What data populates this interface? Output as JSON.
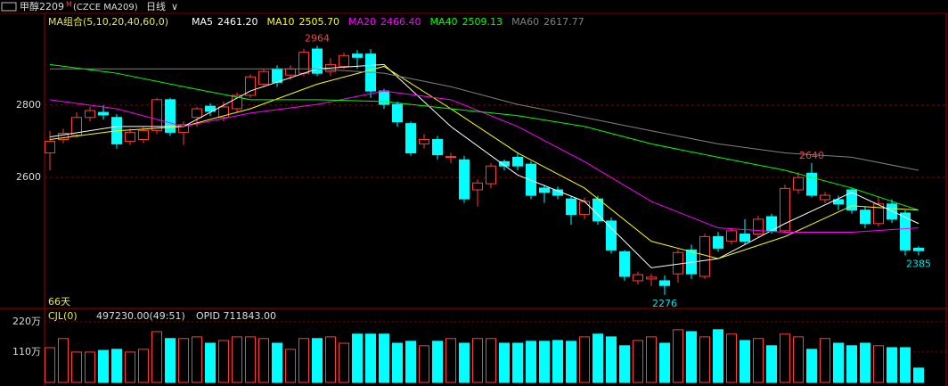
{
  "header": {
    "name": "甲醇2209",
    "mark": "M",
    "code": "(CZCE MA209)",
    "period": "日线"
  },
  "chart_data": [
    {
      "type": "candlestick",
      "title": "MA组合(5,10,20,40,60,0)",
      "days": "66天",
      "open": [
        2668,
        2705,
        2717,
        2766,
        2780,
        2766,
        2700,
        2705,
        2730,
        2815,
        2725,
        2766,
        2797,
        2766,
        2790,
        2827,
        2858,
        2900,
        2883,
        2888,
        2955,
        2893,
        2907,
        2941,
        2941,
        2839,
        2802,
        2749,
        2693,
        2705,
        2658,
        2649,
        2566,
        2583,
        2644,
        2656,
        2637,
        2571,
        2566,
        2541,
        2498,
        2541,
        2480,
        2395,
        2315,
        2320,
        2315,
        2334,
        2400,
        2327,
        2437,
        2424,
        2444,
        2444,
        2492,
        2453,
        2566,
        2612,
        2539,
        2539,
        2566,
        2510,
        2473,
        2527,
        2502,
        2405
      ],
      "high": [
        2729,
        2735,
        2780,
        2795,
        2800,
        2775,
        2735,
        2740,
        2820,
        2820,
        2755,
        2795,
        2805,
        2810,
        2835,
        2885,
        2900,
        2910,
        2910,
        2955,
        2964,
        2930,
        2945,
        2952,
        2955,
        2845,
        2810,
        2755,
        2720,
        2715,
        2668,
        2660,
        2595,
        2640,
        2650,
        2670,
        2645,
        2580,
        2575,
        2550,
        2545,
        2550,
        2490,
        2400,
        2340,
        2335,
        2330,
        2400,
        2415,
        2445,
        2450,
        2460,
        2485,
        2495,
        2500,
        2580,
        2615,
        2640,
        2560,
        2550,
        2570,
        2520,
        2545,
        2540,
        2510,
        2410
      ],
      "low": [
        2620,
        2695,
        2710,
        2755,
        2760,
        2680,
        2690,
        2695,
        2720,
        2715,
        2690,
        2740,
        2770,
        2755,
        2780,
        2820,
        2850,
        2850,
        2870,
        2880,
        2880,
        2880,
        2900,
        2900,
        2820,
        2790,
        2740,
        2660,
        2680,
        2650,
        2640,
        2530,
        2520,
        2570,
        2620,
        2620,
        2540,
        2530,
        2540,
        2470,
        2485,
        2470,
        2390,
        2315,
        2305,
        2300,
        2276,
        2310,
        2320,
        2320,
        2395,
        2415,
        2415,
        2435,
        2445,
        2445,
        2555,
        2545,
        2530,
        2510,
        2500,
        2460,
        2465,
        2475,
        2385,
        2385
      ],
      "close": [
        2700,
        2722,
        2766,
        2785,
        2773,
        2693,
        2725,
        2730,
        2815,
        2725,
        2746,
        2790,
        2783,
        2795,
        2827,
        2878,
        2893,
        2863,
        2900,
        2946,
        2888,
        2912,
        2937,
        2932,
        2839,
        2802,
        2754,
        2668,
        2705,
        2663,
        2658,
        2541,
        2585,
        2632,
        2632,
        2632,
        2551,
        2559,
        2551,
        2498,
        2534,
        2480,
        2400,
        2327,
        2332,
        2325,
        2302,
        2393,
        2334,
        2437,
        2405,
        2453,
        2424,
        2485,
        2453,
        2570,
        2600,
        2551,
        2551,
        2527,
        2510,
        2473,
        2527,
        2485,
        2400,
        2398
      ],
      "up_color": "#ff3b3b",
      "down_color": "#00ffff",
      "ylim": [
        2241,
        3046
      ],
      "yticks": [
        2800,
        2600
      ],
      "grid": true,
      "ma_x": [
        0,
        5,
        10,
        15,
        20,
        25,
        30,
        35,
        40,
        45,
        50,
        55,
        60,
        65
      ],
      "ma_lines": [
        {
          "name": "MA5",
          "legend_value": "2461.20",
          "color": "#ffffff",
          "values": [
            2712,
            2741,
            2741,
            2839,
            2900,
            2912,
            2741,
            2607,
            2534,
            2351,
            2376,
            2473,
            2559,
            2473
          ]
        },
        {
          "name": "MA10",
          "legend_value": "2505.70",
          "color": "#ffff00",
          "values": [
            2705,
            2729,
            2741,
            2790,
            2858,
            2907,
            2790,
            2668,
            2571,
            2424,
            2376,
            2437,
            2522,
            2510
          ]
        },
        {
          "name": "MA20",
          "legend_value": "2466.40",
          "color": "#ff00ff",
          "values": [
            2815,
            2790,
            2741,
            2778,
            2802,
            2839,
            2815,
            2741,
            2644,
            2534,
            2461,
            2449,
            2449,
            2461
          ]
        },
        {
          "name": "MA40",
          "legend_value": "2509.13",
          "color": "#00ff00",
          "values": [
            2912,
            2888,
            2851,
            2815,
            2815,
            2810,
            2790,
            2771,
            2741,
            2693,
            2656,
            2620,
            2571,
            2510
          ]
        },
        {
          "name": "MA60",
          "legend_value": "2617.77",
          "color": "#808080",
          "values": [
            2900,
            2900,
            2900,
            2900,
            2900,
            2888,
            2851,
            2802,
            2766,
            2729,
            2693,
            2668,
            2656,
            2620
          ]
        }
      ],
      "annotations": [
        2964,
        2640,
        2276,
        2385
      ]
    },
    {
      "type": "bar",
      "title": "CJL(0)",
      "summary": "497230.00(49:51)",
      "opid": "OPID 711843.00",
      "values": [
        1260000,
        1590000,
        1100000,
        1100000,
        1160000,
        1200000,
        1100000,
        1200000,
        1840000,
        1590000,
        1590000,
        1650000,
        1420000,
        1520000,
        1650000,
        1650000,
        1590000,
        1420000,
        1200000,
        1590000,
        1590000,
        1650000,
        1420000,
        1750000,
        1750000,
        1750000,
        1420000,
        1490000,
        1330000,
        1490000,
        1590000,
        1420000,
        1590000,
        1590000,
        1420000,
        1420000,
        1490000,
        1490000,
        1520000,
        1490000,
        1650000,
        1750000,
        1650000,
        1330000,
        1520000,
        1650000,
        1420000,
        1910000,
        1840000,
        1650000,
        1910000,
        1750000,
        1520000,
        1590000,
        1330000,
        1750000,
        1650000,
        1200000,
        1590000,
        1420000,
        1330000,
        1420000,
        1330000,
        1260000,
        1260000,
        520000
      ],
      "ylim": [
        0,
        2550000
      ],
      "yticks": [
        {
          "value": 2200000,
          "label": "220万"
        },
        {
          "value": 1100000,
          "label": "110万"
        }
      ],
      "grid": true
    }
  ]
}
